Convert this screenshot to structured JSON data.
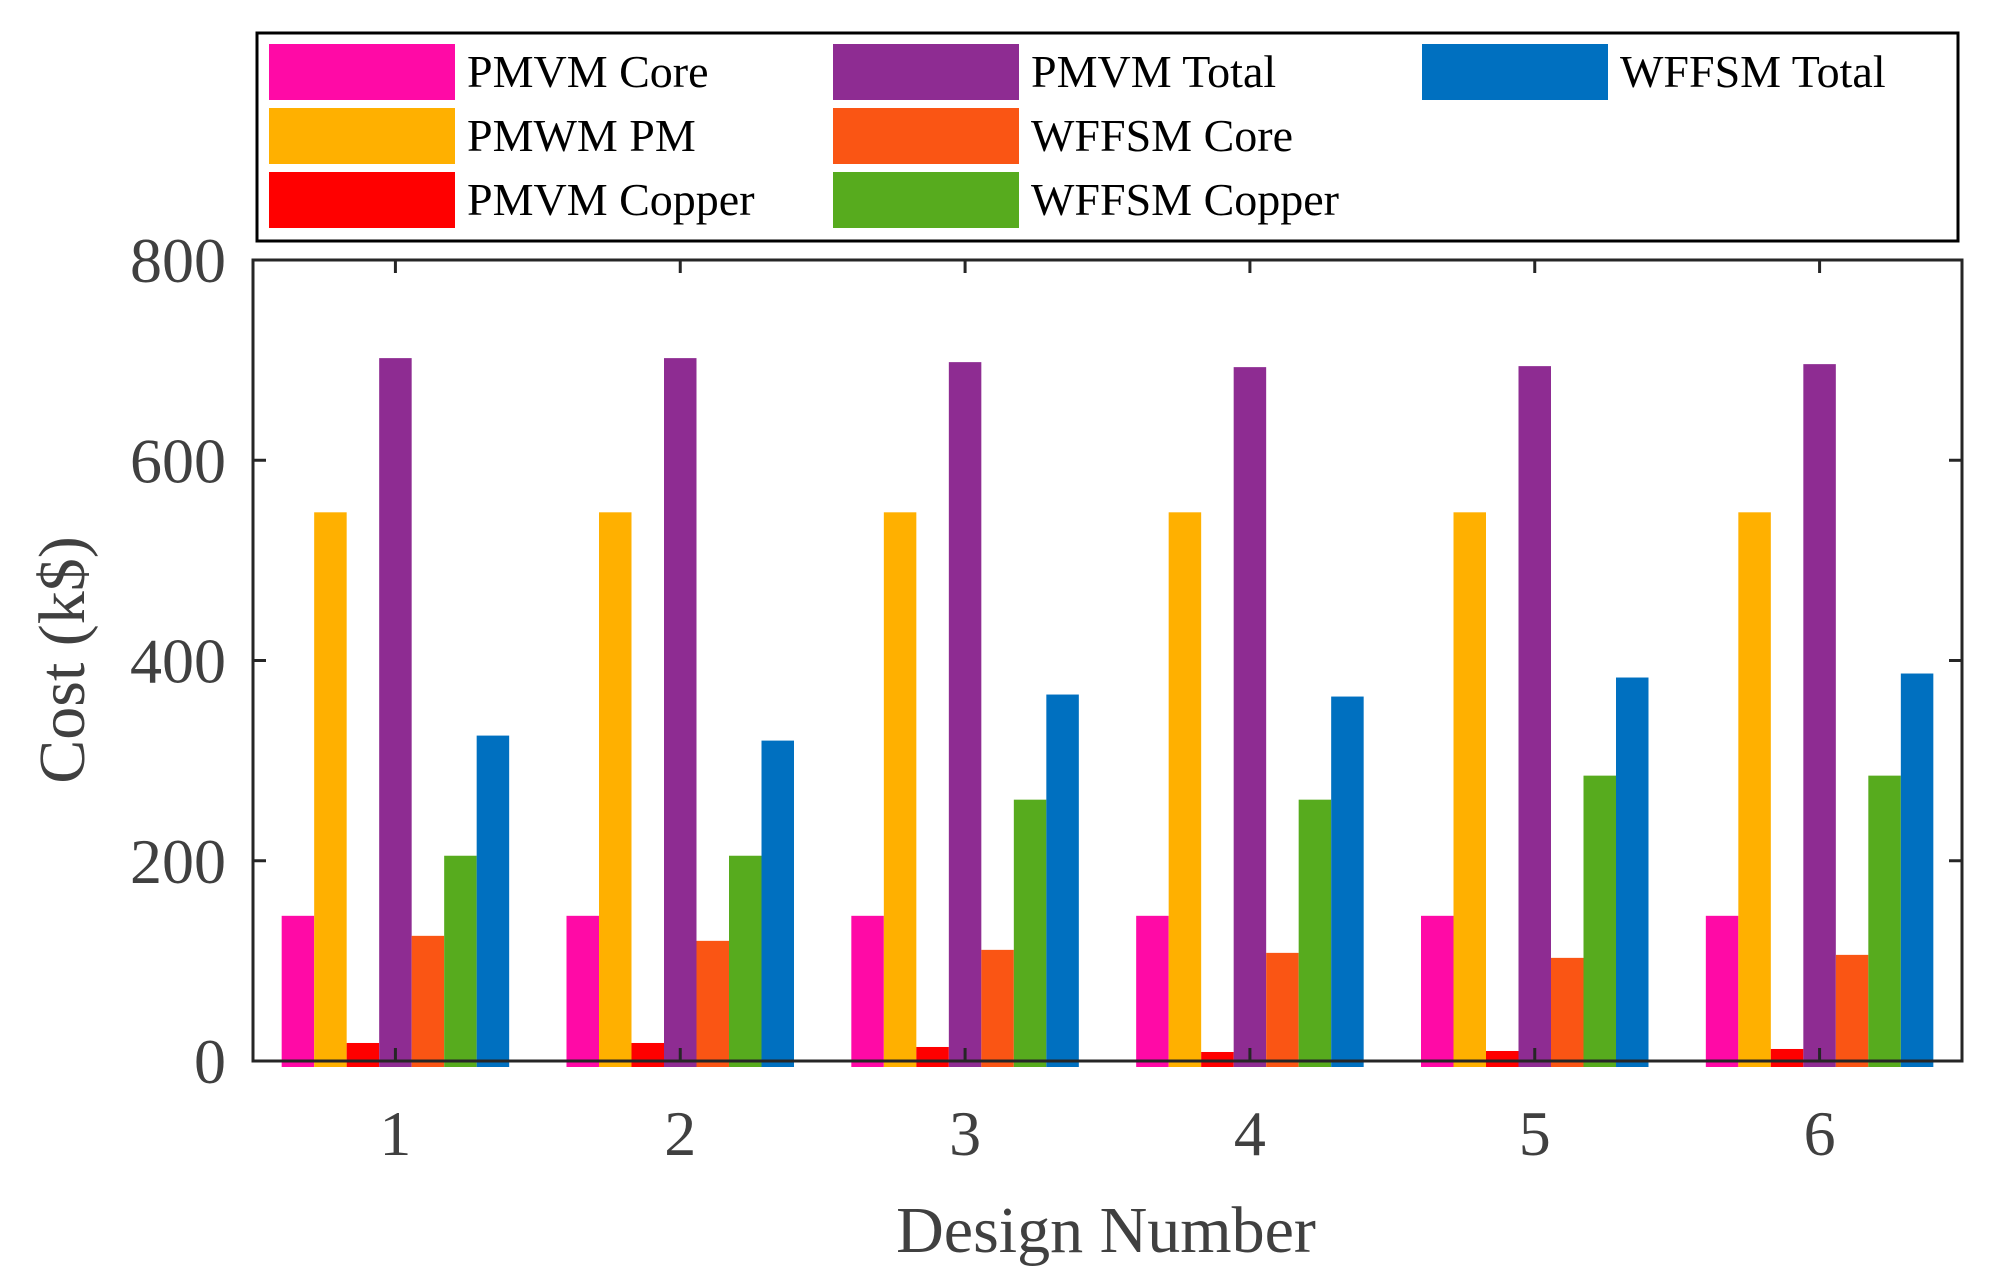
{
  "chart_data": {
    "type": "bar",
    "title": "",
    "xlabel": "Design Number",
    "ylabel": "Cost (k$)",
    "ylim": [
      0,
      800
    ],
    "yticks": [
      "0",
      "200",
      "400",
      "600",
      "800"
    ],
    "categories": [
      "1",
      "2",
      "3",
      "4",
      "5",
      "6"
    ],
    "grid": false,
    "legend_position": "top",
    "series": [
      {
        "name": "PMVM Core",
        "color": "#ff0aa6",
        "values": [
          145,
          145,
          145,
          145,
          145,
          145
        ]
      },
      {
        "name": "PMWM PM",
        "color": "#ffb000",
        "values": [
          548,
          548,
          548,
          548,
          548,
          548
        ]
      },
      {
        "name": "PMVM Copper",
        "color": "#ff0000",
        "values": [
          18,
          18,
          14,
          9,
          10,
          12
        ]
      },
      {
        "name": "PMVM Total",
        "color": "#8e2c92",
        "values": [
          702,
          702,
          698,
          693,
          694,
          696
        ]
      },
      {
        "name": "WFFSM Core",
        "color": "#fa5514",
        "values": [
          125,
          120,
          111,
          108,
          103,
          106
        ]
      },
      {
        "name": "WFFSM Copper",
        "color": "#57ab1e",
        "values": [
          205,
          205,
          261,
          261,
          285,
          285
        ]
      },
      {
        "name": "WFFSM Total",
        "color": "#0070c0",
        "values": [
          325,
          320,
          366,
          364,
          383,
          387
        ]
      }
    ]
  }
}
